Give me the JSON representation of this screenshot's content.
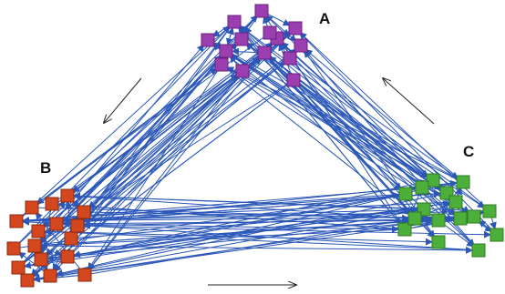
{
  "diagram": {
    "clusters": [
      {
        "id": "A",
        "label": "A",
        "color": "#9b3fb0",
        "stroke": "#6a1f80",
        "node_count": 14
      },
      {
        "id": "B",
        "label": "B",
        "color": "#d4461e",
        "stroke": "#8a2a10",
        "node_count": 17
      },
      {
        "id": "C",
        "label": "C",
        "color": "#4caf3a",
        "stroke": "#2f7a22",
        "node_count": 16
      }
    ],
    "edge_color": "#2a57b8",
    "flow_arrow_color": "#222222",
    "flow_arrows": [
      {
        "from": "A",
        "to": "B"
      },
      {
        "from": "B",
        "to": "C"
      },
      {
        "from": "C",
        "to": "A"
      }
    ]
  }
}
